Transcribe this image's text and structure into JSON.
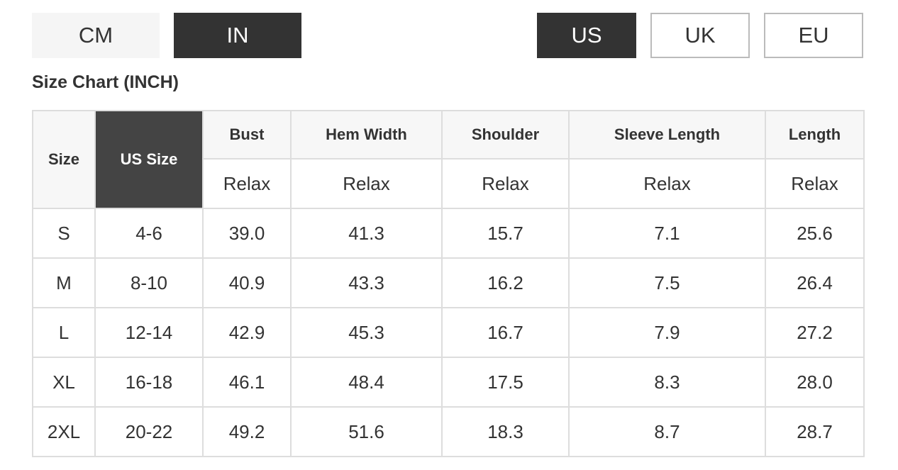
{
  "unit_buttons": [
    {
      "label": "CM",
      "active": false
    },
    {
      "label": "IN",
      "active": true
    }
  ],
  "region_buttons": [
    {
      "label": "US",
      "active": true
    },
    {
      "label": "UK",
      "active": false
    },
    {
      "label": "EU",
      "active": false
    }
  ],
  "title": "Size Chart (INCH)",
  "table": {
    "header": {
      "size": "Size",
      "us_size": "US Size",
      "measurements": [
        "Bust",
        "Hem Width",
        "Shoulder",
        "Sleeve Length",
        "Length"
      ],
      "fit": [
        "Relax",
        "Relax",
        "Relax",
        "Relax",
        "Relax"
      ]
    },
    "rows": [
      [
        "S",
        "4-6",
        "39.0",
        "41.3",
        "15.7",
        "7.1",
        "25.6"
      ],
      [
        "M",
        "8-10",
        "40.9",
        "43.3",
        "16.2",
        "7.5",
        "26.4"
      ],
      [
        "L",
        "12-14",
        "42.9",
        "45.3",
        "16.7",
        "7.9",
        "27.2"
      ],
      [
        "XL",
        "16-18",
        "46.1",
        "48.4",
        "17.5",
        "8.3",
        "28.0"
      ],
      [
        "2XL",
        "20-22",
        "49.2",
        "51.6",
        "18.3",
        "8.7",
        "28.7"
      ]
    ]
  }
}
